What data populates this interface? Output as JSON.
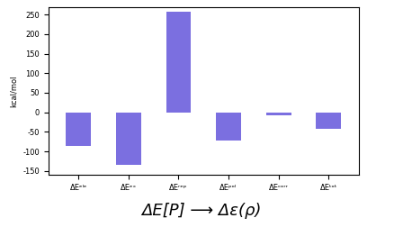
{
  "chart_data": {
    "type": "bar",
    "categories": [
      "ΔEᵉˡᵉ",
      "ΔEᵉˣ",
      "ΔEʳᵉᵖ",
      "ΔEᵖᵒˡ",
      "ΔEᶜᵒʳʳ",
      "ΔEᵗᵒᵗ"
    ],
    "values": [
      -85,
      -135,
      258,
      -72,
      -8,
      -43
    ],
    "color": "#7b6fe0",
    "y_label": "kcal/mol",
    "ylim": [
      -160,
      270
    ],
    "yticks": [
      -150,
      -100,
      -50,
      0,
      50,
      100,
      150,
      200,
      250
    ],
    "grid": false,
    "caption": "ΔE[P] ⟶ Δε(ρ)"
  }
}
